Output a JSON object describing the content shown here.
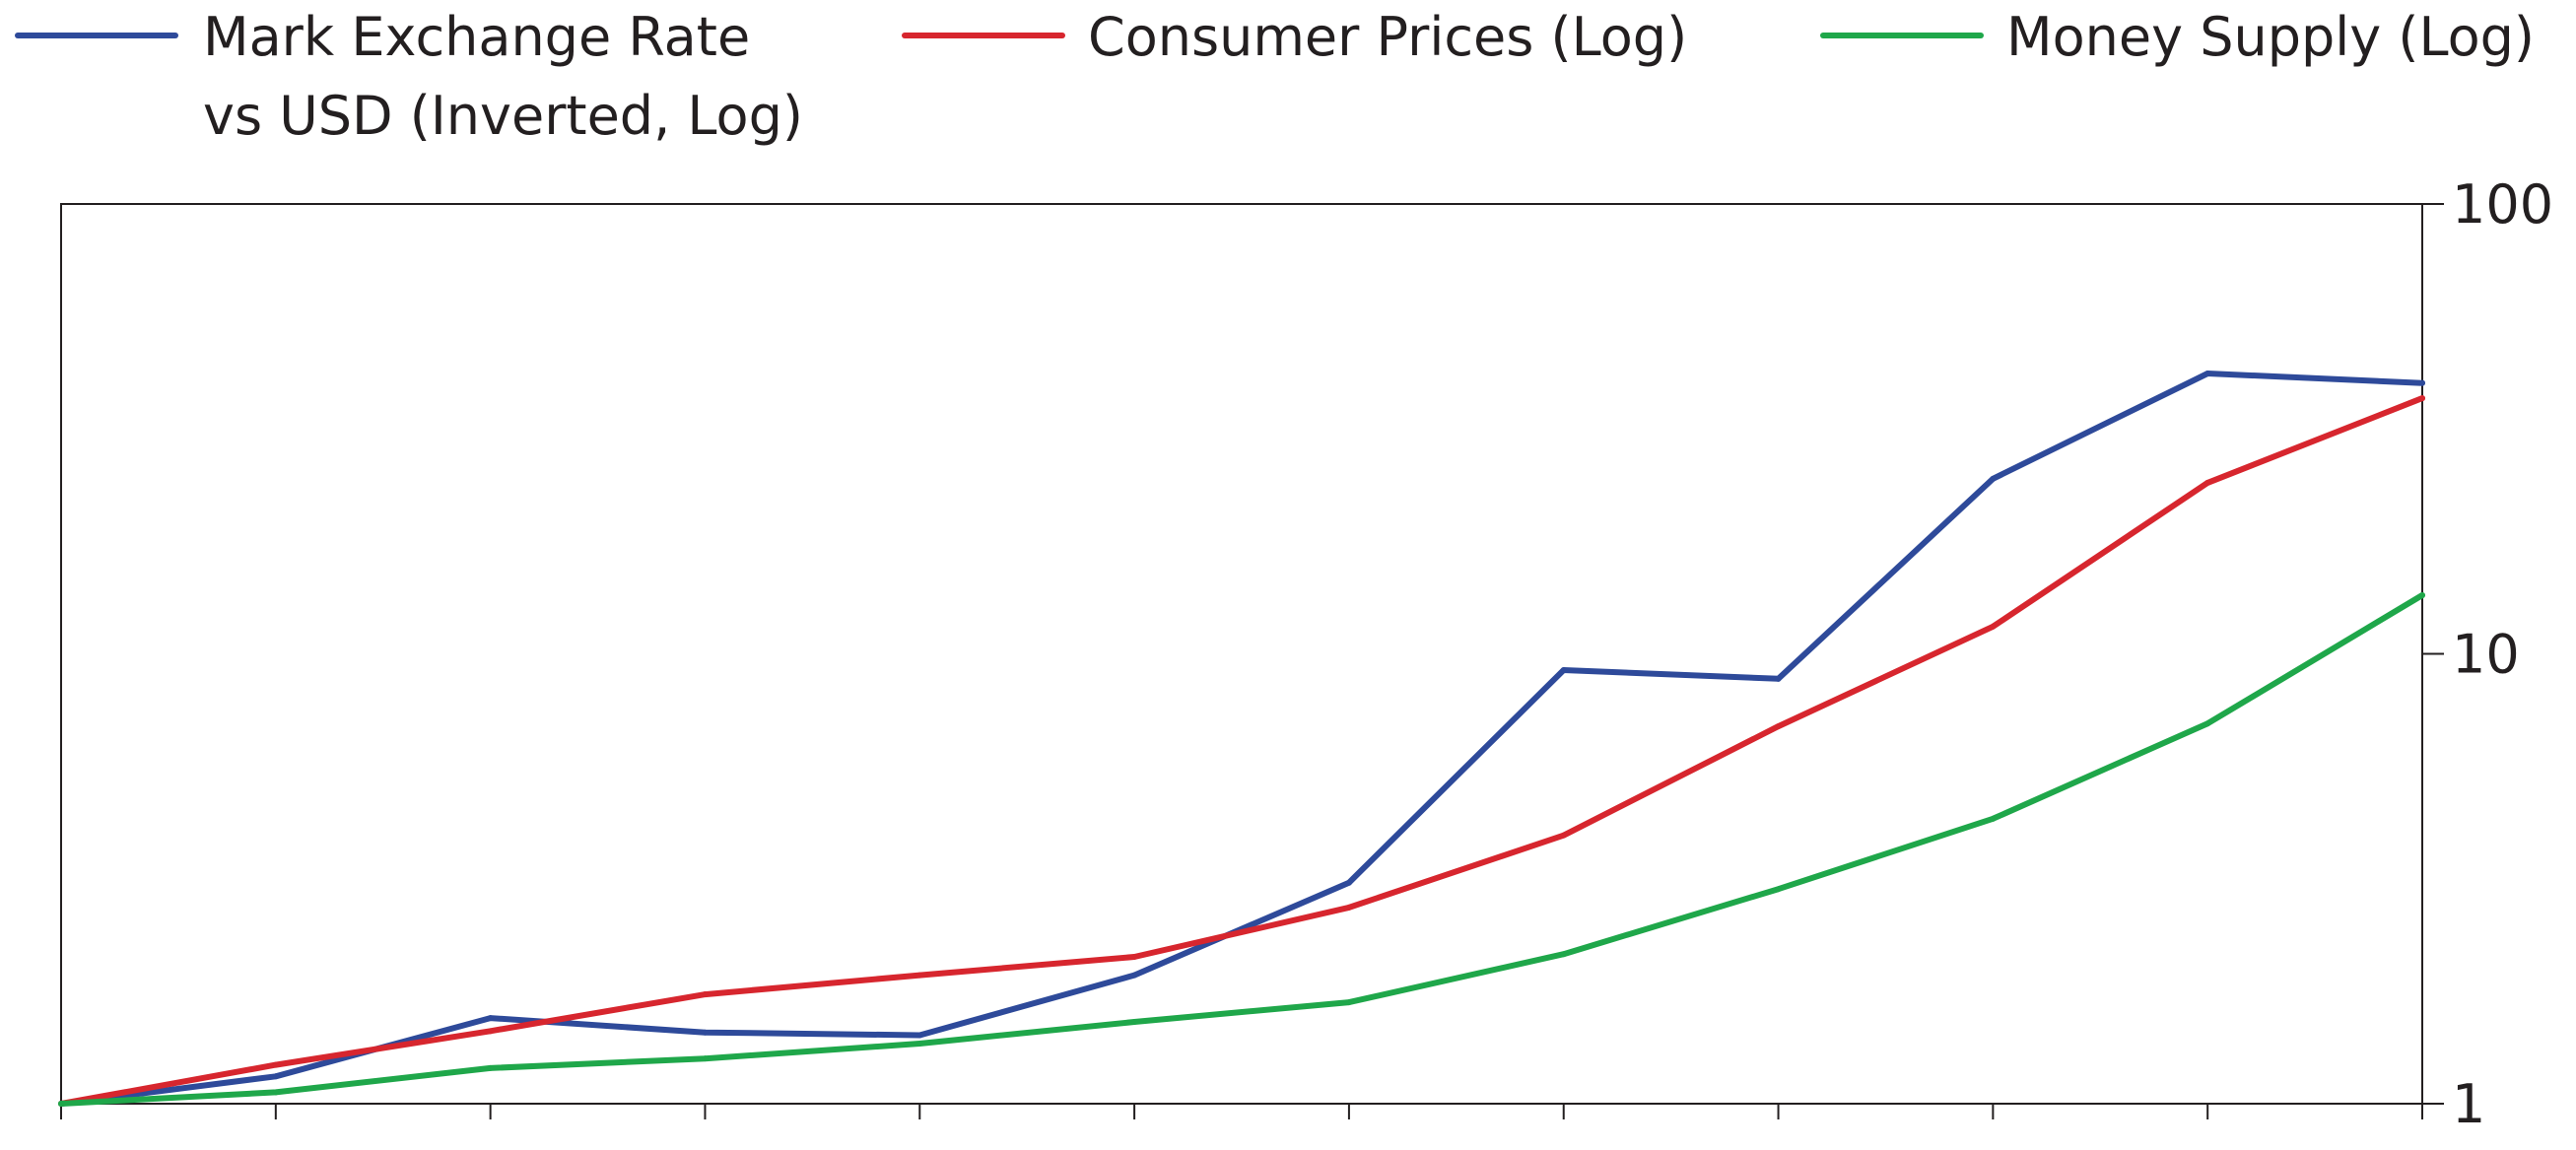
{
  "chart_data": {
    "type": "line",
    "y_scale": "log",
    "y_axis_position": "right",
    "ylim": [
      1,
      100
    ],
    "grid": false,
    "legend_position": "top",
    "y_ticks": [
      {
        "value": 1,
        "label": "1"
      },
      {
        "value": 10,
        "label": "10"
      },
      {
        "value": 100,
        "label": "100"
      }
    ],
    "x": [
      0,
      1,
      2,
      3,
      4,
      5,
      6,
      7,
      8,
      9,
      10,
      11
    ],
    "series": [
      {
        "name": "Mark Exchange Rate vs USD (Inverted, Log)",
        "legend_lines": [
          "Mark Exchange Rate",
          "vs USD (Inverted, Log)"
        ],
        "color": "#2e4a9a",
        "values": [
          1.0,
          1.15,
          1.55,
          1.44,
          1.42,
          1.93,
          3.1,
          9.2,
          8.8,
          24.5,
          42.0,
          40.0
        ]
      },
      {
        "name": "Consumer Prices (Log)",
        "legend_lines": [
          "Consumer Prices (Log)"
        ],
        "color": "#d7262e",
        "values": [
          1.0,
          1.22,
          1.45,
          1.75,
          1.93,
          2.12,
          2.73,
          3.95,
          6.9,
          11.5,
          24.0,
          37.0
        ]
      },
      {
        "name": "Money Supply (Log)",
        "legend_lines": [
          "Money Supply (Log)"
        ],
        "color": "#1fa74a",
        "values": [
          1.0,
          1.06,
          1.2,
          1.26,
          1.36,
          1.52,
          1.68,
          2.15,
          3.0,
          4.3,
          7.0,
          13.5
        ]
      }
    ]
  }
}
